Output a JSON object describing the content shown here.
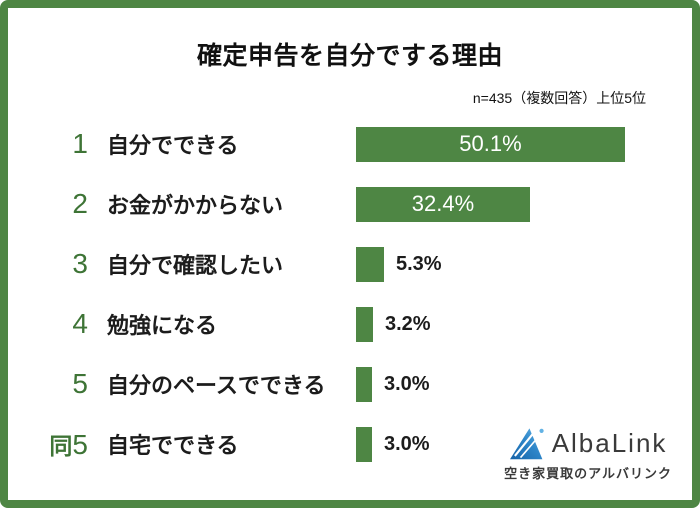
{
  "title": "確定申告を自分でする理由",
  "note": "n=435（複数回答）上位5位",
  "colors": {
    "frame_green": "#4e8644",
    "bar_green": "#4e8644",
    "rank_green": "#3e7436",
    "text_dark": "#1c1c1c",
    "bar_label_inside": "#ffffff",
    "logo_blue_light": "#62b2e4",
    "logo_blue_dark": "#1563a8"
  },
  "chart_data": {
    "type": "bar",
    "orientation": "horizontal",
    "title": "確定申告を自分でする理由",
    "note": "n=435（複数回答）上位5位",
    "categories": [
      "自分でできる",
      "お金がかからない",
      "自分で確認したい",
      "勉強になる",
      "自分のペースでできる",
      "自宅でできる"
    ],
    "values": [
      50.1,
      32.4,
      5.3,
      3.2,
      3.0,
      3.0
    ],
    "xlim": [
      0,
      64
    ],
    "grid": false,
    "legend": null,
    "bar_color": "#4e8644",
    "rows": [
      {
        "rank_prefix": "",
        "rank": "1",
        "label": "自分でできる",
        "value": 50.1,
        "value_label": "50.1%"
      },
      {
        "rank_prefix": "",
        "rank": "2",
        "label": "お金がかからない",
        "value": 32.4,
        "value_label": "32.4%"
      },
      {
        "rank_prefix": "",
        "rank": "3",
        "label": "自分で確認したい",
        "value": 5.3,
        "value_label": "5.3%"
      },
      {
        "rank_prefix": "",
        "rank": "4",
        "label": "勉強になる",
        "value": 3.2,
        "value_label": "3.2%"
      },
      {
        "rank_prefix": "",
        "rank": "5",
        "label": "自分のペースでできる",
        "value": 3.0,
        "value_label": "3.0%"
      },
      {
        "rank_prefix": "同",
        "rank": "5",
        "label": "自宅でできる",
        "value": 3.0,
        "value_label": "3.0%"
      }
    ]
  },
  "logo": {
    "brand": "AlbaLink",
    "tagline": "空き家買取のアルバリンク",
    "icon": "albalink-triangle-icon"
  }
}
